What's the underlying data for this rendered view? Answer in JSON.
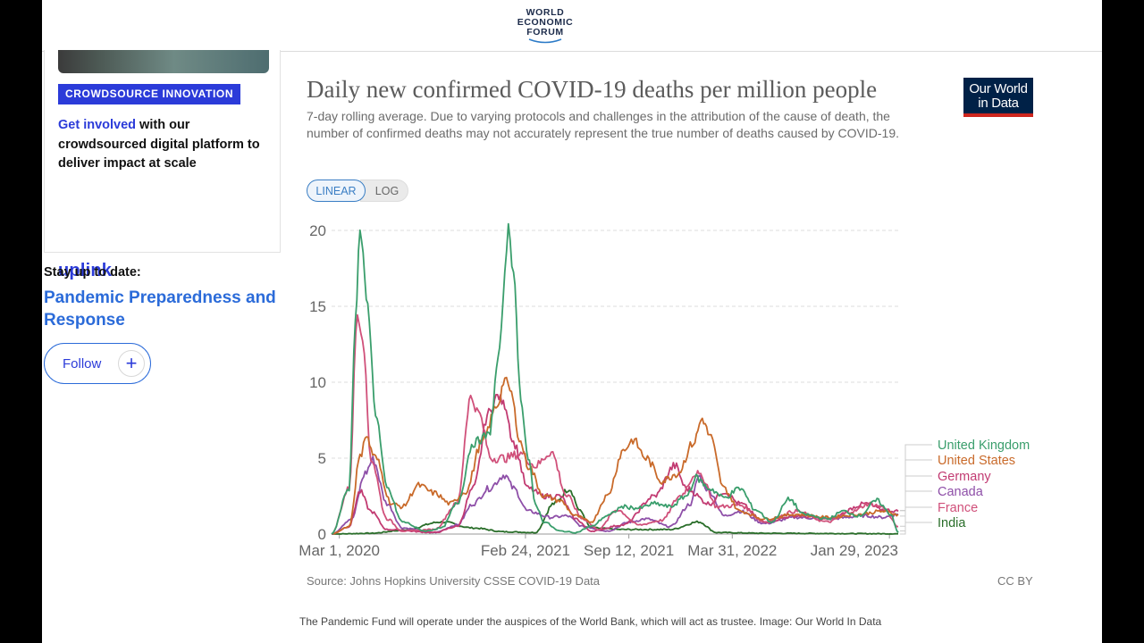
{
  "header": {
    "logo_line1": "WORLD",
    "logo_line2": "ECONOMIC",
    "logo_line3": "FORUM"
  },
  "sidebar_card": {
    "badge": "CROWDSOURCE INNOVATION",
    "link_text": "Get involved",
    "text": " with our crowdsourced digital platform to deliver impact at scale",
    "brand": "uplink"
  },
  "follow_section": {
    "stay_label": "Stay up to date:",
    "topic": "Pandemic Preparedness and Response",
    "follow_label": "Follow",
    "plus": "+"
  },
  "chart": {
    "title": "Daily new confirmed COVID-19 deaths per million people",
    "subtitle": "7-day rolling average. Due to varying protocols and challenges in the attribution of the cause of death, the number of confirmed deaths may not accurately represent the true number of deaths caused by COVID-19.",
    "badge_line1": "Our World",
    "badge_line2": "in Data",
    "scale_linear": "LINEAR",
    "scale_log": "LOG",
    "source": "Source: Johns Hopkins University CSSE COVID-19 Data",
    "license": "CC BY"
  },
  "caption": "The Pandemic Fund will operate under the auspices of the World Bank, which will act as trustee. Image: Our World In Data",
  "chart_data": {
    "type": "line",
    "title": "Daily new confirmed COVID-19 deaths per million people",
    "ylim": [
      0,
      20
    ],
    "yticks": [
      0,
      5,
      10,
      15,
      20
    ],
    "xticks": [
      "Mar 1, 2020",
      "Feb 24, 2021",
      "Sep 12, 2021",
      "Mar 31, 2022",
      "Jan 29, 2023"
    ],
    "x_range": [
      "2020-02-15",
      "2023-02-15"
    ],
    "grid": true,
    "legend_position": "right",
    "series": [
      {
        "name": "United Kingdom",
        "color": "#3a9e6c",
        "points": [
          [
            "2020-02-15",
            0
          ],
          [
            "2020-03-20",
            3
          ],
          [
            "2020-04-01",
            14
          ],
          [
            "2020-04-10",
            20
          ],
          [
            "2020-04-25",
            15
          ],
          [
            "2020-05-10",
            8
          ],
          [
            "2020-06-01",
            3
          ],
          [
            "2020-07-01",
            0.8
          ],
          [
            "2020-08-15",
            0.2
          ],
          [
            "2020-09-15",
            0.4
          ],
          [
            "2020-10-15",
            2
          ],
          [
            "2020-11-15",
            6
          ],
          [
            "2020-12-15",
            6.5
          ],
          [
            "2021-01-05",
            12
          ],
          [
            "2021-01-15",
            17
          ],
          [
            "2021-01-22",
            20.5
          ],
          [
            "2021-02-01",
            17
          ],
          [
            "2021-02-15",
            9
          ],
          [
            "2021-03-01",
            5
          ],
          [
            "2021-03-15",
            2
          ],
          [
            "2021-04-01",
            0.8
          ],
          [
            "2021-05-01",
            0.2
          ],
          [
            "2021-06-01",
            0.1
          ],
          [
            "2021-07-01",
            0.5
          ],
          [
            "2021-08-01",
            1.2
          ],
          [
            "2021-09-01",
            1.8
          ],
          [
            "2021-10-01",
            1.7
          ],
          [
            "2021-11-01",
            2
          ],
          [
            "2021-12-01",
            1.8
          ],
          [
            "2022-01-01",
            2.5
          ],
          [
            "2022-01-20",
            3.7
          ],
          [
            "2022-02-15",
            3
          ],
          [
            "2022-03-15",
            2.4
          ],
          [
            "2022-04-15",
            3
          ],
          [
            "2022-05-15",
            1.6
          ],
          [
            "2022-06-15",
            0.8
          ],
          [
            "2022-07-20",
            2.3
          ],
          [
            "2022-08-15",
            1.3
          ],
          [
            "2022-10-01",
            1
          ],
          [
            "2022-11-01",
            1.5
          ],
          [
            "2022-12-01",
            1.2
          ],
          [
            "2023-01-05",
            2.2
          ],
          [
            "2023-02-01",
            1.3
          ],
          [
            "2023-02-15",
            0.1
          ]
        ]
      },
      {
        "name": "United States",
        "color": "#c96a2a",
        "points": [
          [
            "2020-02-15",
            0
          ],
          [
            "2020-03-20",
            0.5
          ],
          [
            "2020-04-10",
            5
          ],
          [
            "2020-04-20",
            6.5
          ],
          [
            "2020-05-10",
            5
          ],
          [
            "2020-06-10",
            2
          ],
          [
            "2020-07-01",
            1.8
          ],
          [
            "2020-08-01",
            3.2
          ],
          [
            "2020-09-01",
            2.7
          ],
          [
            "2020-10-01",
            2
          ],
          [
            "2020-11-01",
            2.8
          ],
          [
            "2020-12-01",
            6
          ],
          [
            "2021-01-01",
            8.5
          ],
          [
            "2021-01-15",
            10.2
          ],
          [
            "2021-01-25",
            9.5
          ],
          [
            "2021-02-15",
            6
          ],
          [
            "2021-03-01",
            4.5
          ],
          [
            "2021-04-01",
            2.5
          ],
          [
            "2021-05-01",
            2.2
          ],
          [
            "2021-06-01",
            1.2
          ],
          [
            "2021-07-01",
            0.8
          ],
          [
            "2021-08-01",
            2.5
          ],
          [
            "2021-09-01",
            5.5
          ],
          [
            "2021-09-20",
            6.2
          ],
          [
            "2021-10-15",
            5
          ],
          [
            "2021-11-15",
            3.5
          ],
          [
            "2021-12-15",
            4
          ],
          [
            "2022-01-15",
            6
          ],
          [
            "2022-02-01",
            7.6
          ],
          [
            "2022-02-15",
            6.5
          ],
          [
            "2022-03-15",
            3
          ],
          [
            "2022-04-15",
            1.5
          ],
          [
            "2022-06-01",
            1
          ],
          [
            "2022-08-01",
            1.3
          ],
          [
            "2022-10-01",
            1.1
          ],
          [
            "2022-12-01",
            1.3
          ],
          [
            "2023-01-15",
            1.5
          ],
          [
            "2023-02-15",
            1.3
          ]
        ]
      },
      {
        "name": "Germany",
        "color": "#c23b72",
        "points": [
          [
            "2020-02-15",
            0
          ],
          [
            "2020-03-20",
            0.5
          ],
          [
            "2020-04-10",
            2.8
          ],
          [
            "2020-05-01",
            1.5
          ],
          [
            "2020-06-01",
            0.3
          ],
          [
            "2020-09-01",
            0.1
          ],
          [
            "2020-10-15",
            0.5
          ],
          [
            "2020-11-15",
            3
          ],
          [
            "2020-12-15",
            8
          ],
          [
            "2021-01-01",
            9.1
          ],
          [
            "2021-01-15",
            8.5
          ],
          [
            "2021-02-01",
            6
          ],
          [
            "2021-03-01",
            3
          ],
          [
            "2021-04-01",
            2.5
          ],
          [
            "2021-05-01",
            2.5
          ],
          [
            "2021-06-01",
            1
          ],
          [
            "2021-07-01",
            0.2
          ],
          [
            "2021-09-01",
            0.6
          ],
          [
            "2021-11-01",
            2.5
          ],
          [
            "2021-12-10",
            4.5
          ],
          [
            "2022-01-01",
            3
          ],
          [
            "2022-02-15",
            2
          ],
          [
            "2022-03-15",
            2.8
          ],
          [
            "2022-04-15",
            2
          ],
          [
            "2022-06-01",
            0.8
          ],
          [
            "2022-08-01",
            1.2
          ],
          [
            "2022-10-01",
            1
          ],
          [
            "2022-12-15",
            2
          ],
          [
            "2023-01-15",
            1.6
          ],
          [
            "2023-02-15",
            1.5
          ]
        ]
      },
      {
        "name": "Canada",
        "color": "#8e4fa8",
        "points": [
          [
            "2020-02-15",
            0
          ],
          [
            "2020-03-25",
            1
          ],
          [
            "2020-04-20",
            4
          ],
          [
            "2020-05-05",
            4.9
          ],
          [
            "2020-06-01",
            2
          ],
          [
            "2020-07-01",
            0.4
          ],
          [
            "2020-09-01",
            0.1
          ],
          [
            "2020-10-15",
            0.6
          ],
          [
            "2020-11-15",
            2
          ],
          [
            "2020-12-15",
            3
          ],
          [
            "2021-01-15",
            3.9
          ],
          [
            "2021-02-01",
            3
          ],
          [
            "2021-03-01",
            1.5
          ],
          [
            "2021-04-15",
            1.1
          ],
          [
            "2021-05-15",
            1.2
          ],
          [
            "2021-06-15",
            0.5
          ],
          [
            "2021-08-01",
            0.2
          ],
          [
            "2021-09-15",
            0.8
          ],
          [
            "2021-10-15",
            1
          ],
          [
            "2021-12-01",
            0.5
          ],
          [
            "2022-01-10",
            2
          ],
          [
            "2022-01-25",
            3.8
          ],
          [
            "2022-02-15",
            2.8
          ],
          [
            "2022-03-15",
            1.2
          ],
          [
            "2022-04-15",
            1.5
          ],
          [
            "2022-06-01",
            0.7
          ],
          [
            "2022-08-01",
            1.1
          ],
          [
            "2022-10-01",
            1
          ],
          [
            "2022-12-15",
            1.2
          ],
          [
            "2023-01-15",
            1.1
          ],
          [
            "2023-02-15",
            1.3
          ]
        ]
      },
      {
        "name": "France",
        "color": "#d0507a",
        "points": [
          [
            "2020-02-15",
            0
          ],
          [
            "2020-03-20",
            3
          ],
          [
            "2020-04-05",
            14.5
          ],
          [
            "2020-04-15",
            13
          ],
          [
            "2020-05-01",
            5
          ],
          [
            "2020-06-01",
            1
          ],
          [
            "2020-07-01",
            0.2
          ],
          [
            "2020-09-01",
            0.3
          ],
          [
            "2020-10-15",
            2
          ],
          [
            "2020-11-10",
            9
          ],
          [
            "2020-11-25",
            8
          ],
          [
            "2020-12-20",
            5
          ],
          [
            "2021-01-15",
            5
          ],
          [
            "2021-02-15",
            5.3
          ],
          [
            "2021-03-15",
            4.5
          ],
          [
            "2021-04-15",
            5.4
          ],
          [
            "2021-05-15",
            2.5
          ],
          [
            "2021-06-15",
            1
          ],
          [
            "2021-07-15",
            0.3
          ],
          [
            "2021-08-20",
            1.6
          ],
          [
            "2021-10-01",
            0.6
          ],
          [
            "2021-11-15",
            0.9
          ],
          [
            "2021-12-20",
            2.5
          ],
          [
            "2022-01-20",
            4
          ],
          [
            "2022-02-01",
            3.7
          ],
          [
            "2022-03-01",
            1.8
          ],
          [
            "2022-04-15",
            1.9
          ],
          [
            "2022-06-01",
            0.8
          ],
          [
            "2022-08-01",
            1.5
          ],
          [
            "2022-10-01",
            0.8
          ],
          [
            "2022-11-20",
            1.5
          ],
          [
            "2022-12-20",
            2
          ],
          [
            "2023-01-15",
            1.8
          ],
          [
            "2023-02-15",
            0.5
          ]
        ]
      },
      {
        "name": "India",
        "color": "#2a6e2a",
        "points": [
          [
            "2020-02-15",
            0
          ],
          [
            "2020-05-01",
            0.05
          ],
          [
            "2020-07-01",
            0.25
          ],
          [
            "2020-09-15",
            0.8
          ],
          [
            "2020-11-15",
            0.4
          ],
          [
            "2021-01-15",
            0.15
          ],
          [
            "2021-03-15",
            0.1
          ],
          [
            "2021-04-20",
            2
          ],
          [
            "2021-05-20",
            3
          ],
          [
            "2021-06-10",
            1.5
          ],
          [
            "2021-07-01",
            0.4
          ],
          [
            "2021-09-01",
            0.3
          ],
          [
            "2021-12-01",
            0.3
          ],
          [
            "2022-01-25",
            0.8
          ],
          [
            "2022-03-01",
            0.1
          ],
          [
            "2022-06-01",
            0.05
          ],
          [
            "2023-02-15",
            0.02
          ]
        ]
      }
    ]
  }
}
